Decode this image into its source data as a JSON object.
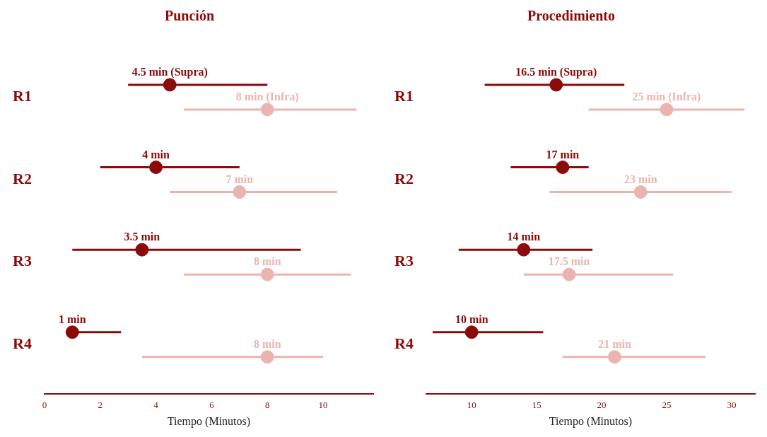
{
  "chart_data": [
    {
      "type": "scatter",
      "title": "Punción",
      "xlabel": "Tiempo (Minutos)",
      "orientation": "horizontal",
      "categories": [
        "R1",
        "R2",
        "R3",
        "R4"
      ],
      "xlim": [
        0,
        11.8
      ],
      "xticks": [
        0,
        2,
        4,
        6,
        8,
        10
      ],
      "grid": false,
      "legend": false,
      "marker": "circle",
      "series": [
        {
          "color": "#8b0a0a",
          "values": [
            4.5,
            4,
            3.5,
            1
          ],
          "errors": [
            [
              3,
              8
            ],
            [
              2,
              7
            ],
            [
              1,
              9.2
            ],
            [
              1,
              2.75
            ]
          ],
          "value_labels": [
            "4.5 min (Supra)",
            "4 min",
            "3.5 min",
            "1 min"
          ]
        },
        {
          "color": "#eab5ae",
          "values": [
            8,
            7,
            8,
            8
          ],
          "errors": [
            [
              5,
              11.2
            ],
            [
              4.5,
              10.5
            ],
            [
              5,
              11
            ],
            [
              3.5,
              10
            ]
          ],
          "value_labels": [
            "8 min (Infra)",
            "7 min",
            "8 min",
            "8 min"
          ]
        }
      ]
    },
    {
      "type": "scatter",
      "title": "Procedimiento",
      "xlabel": "Tiempo (Minutos)",
      "orientation": "horizontal",
      "categories": [
        "R1",
        "R2",
        "R3",
        "R4"
      ],
      "xlim": [
        6.5,
        31.8
      ],
      "xticks": [
        10,
        15,
        20,
        25,
        30
      ],
      "grid": false,
      "legend": false,
      "marker": "circle",
      "series": [
        {
          "color": "#8b0a0a",
          "values": [
            16.5,
            17,
            14,
            10
          ],
          "errors": [
            [
              11,
              21.75
            ],
            [
              13,
              19
            ],
            [
              9,
              19.3
            ],
            [
              7,
              15.5
            ]
          ],
          "value_labels": [
            "16.5 min (Supra)",
            "17 min",
            "14 min",
            "10 min"
          ]
        },
        {
          "color": "#eab5ae",
          "values": [
            25,
            23,
            17.5,
            21
          ],
          "errors": [
            [
              19,
              31
            ],
            [
              16,
              30
            ],
            [
              14,
              25.5
            ],
            [
              17,
              28
            ]
          ],
          "value_labels": [
            "25 min (Infra)",
            "23 min",
            "17.5 min",
            "21 min"
          ]
        }
      ]
    }
  ]
}
